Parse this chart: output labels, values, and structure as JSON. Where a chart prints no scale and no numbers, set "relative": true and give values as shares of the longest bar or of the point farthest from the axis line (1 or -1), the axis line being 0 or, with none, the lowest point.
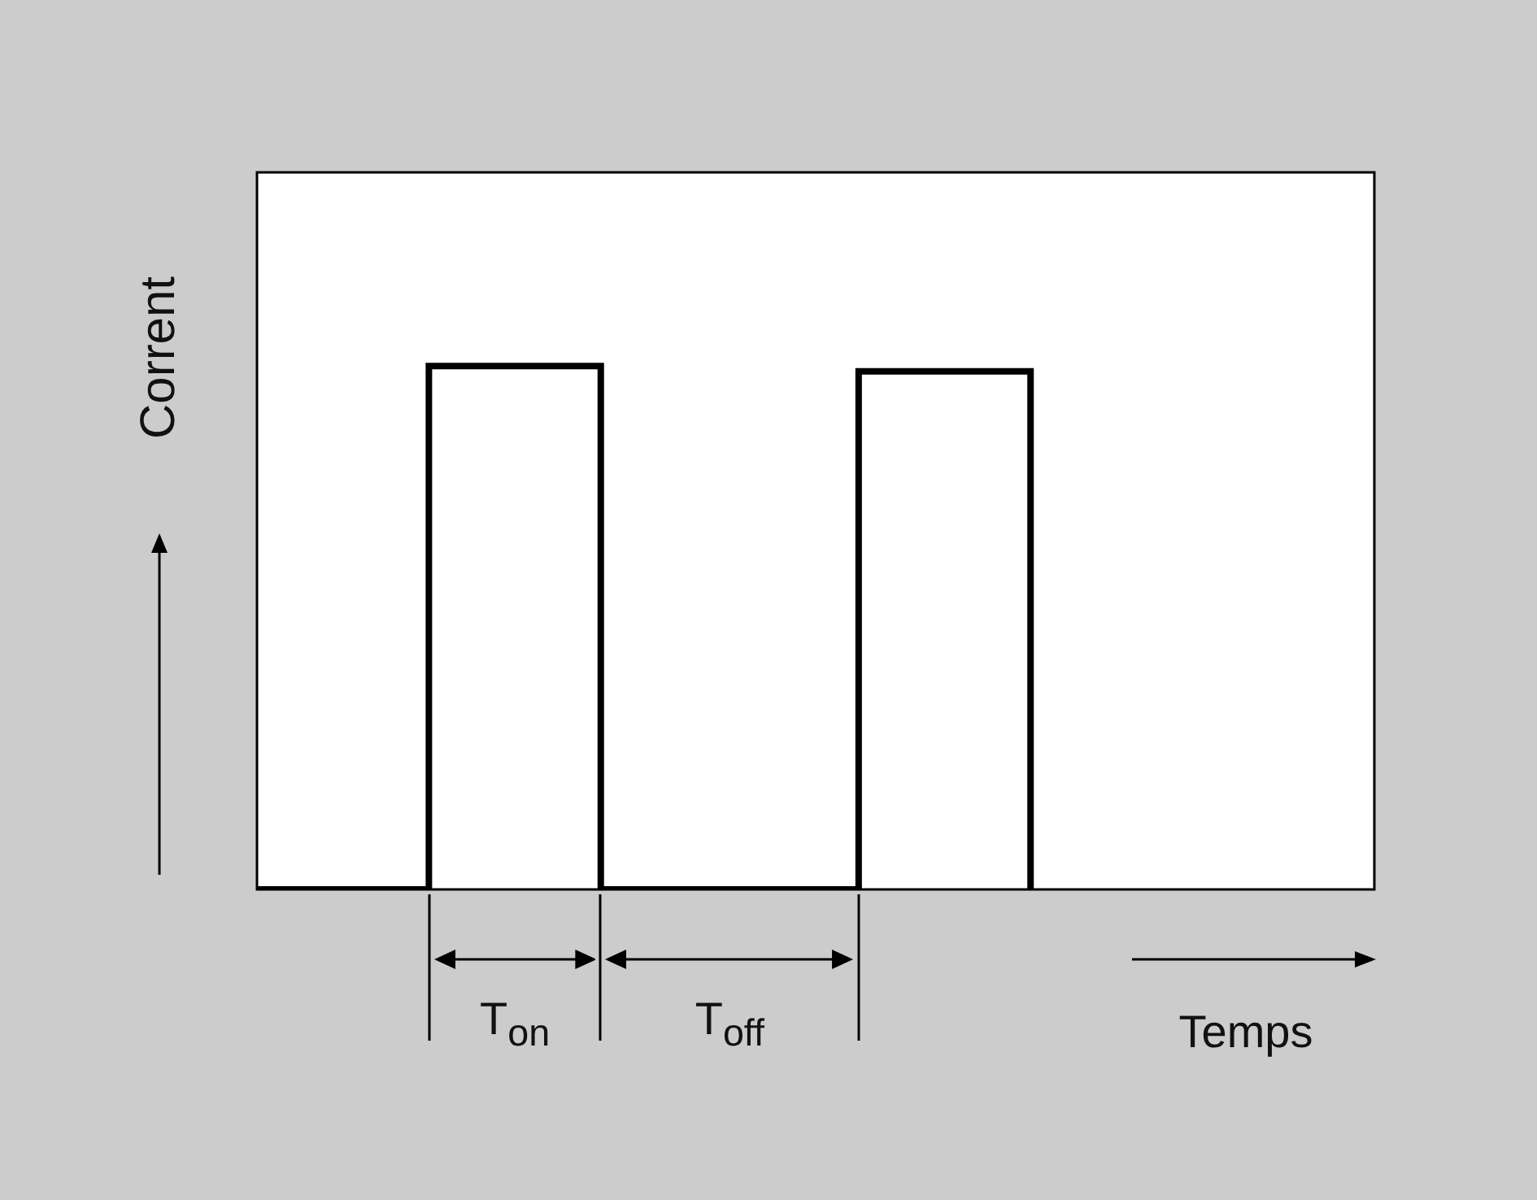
{
  "chart_data": {
    "type": "step",
    "xlabel": "Temps",
    "ylabel": "Corrent",
    "relative": true,
    "color": "#000000",
    "categories": [
      null,
      null,
      null,
      null,
      null,
      null,
      null,
      null,
      null,
      null,
      null,
      null,
      null,
      null
    ],
    "values": [
      0,
      0,
      1,
      1,
      0,
      0,
      0,
      0.99,
      0.99,
      0,
      null,
      null,
      null,
      null
    ],
    "annotations": [
      "T$_{on}$",
      "T$_{off}$"
    ]
  }
}
